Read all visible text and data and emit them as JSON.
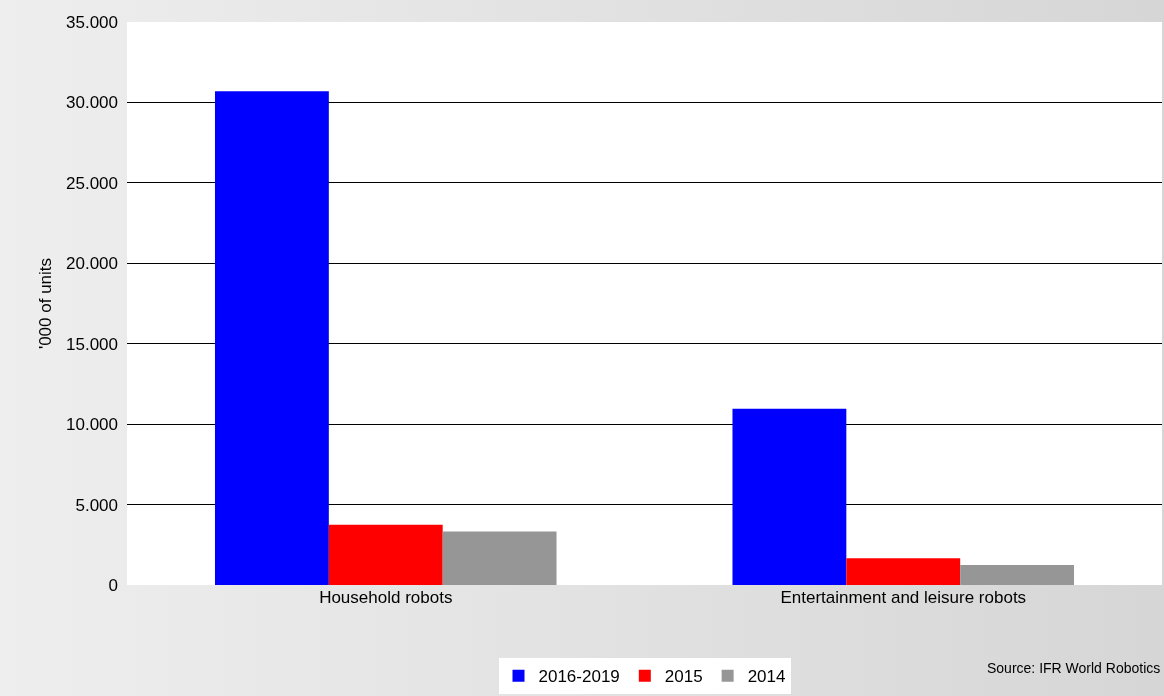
{
  "chart_data": {
    "type": "bar",
    "ylabel": "'000 of units",
    "categories": [
      "Household robots",
      "Entertainment and leisure robots"
    ],
    "series": [
      {
        "name": "2016-2019",
        "color": "#0000ff",
        "values": [
          30700,
          10950
        ]
      },
      {
        "name": "2015",
        "color": "#ff0000",
        "values": [
          3750,
          1660
        ]
      },
      {
        "name": "2014",
        "color": "#969696",
        "values": [
          3330,
          1250
        ]
      }
    ],
    "ylim": [
      0,
      35000
    ],
    "yticks": [
      0,
      {
        "value": 5000,
        "label": "5.000"
      },
      {
        "value": 10000,
        "label": "10.000"
      },
      {
        "value": 15000,
        "label": "15.000"
      },
      {
        "value": 20000,
        "label": "20.000"
      },
      {
        "value": 25000,
        "label": "25.000"
      },
      {
        "value": 30000,
        "label": "30.000"
      },
      {
        "value": 35000,
        "label": "35.000"
      }
    ],
    "grid": "y",
    "legend": "bottom",
    "annotations": [
      "Source: IFR World Robotics"
    ]
  }
}
